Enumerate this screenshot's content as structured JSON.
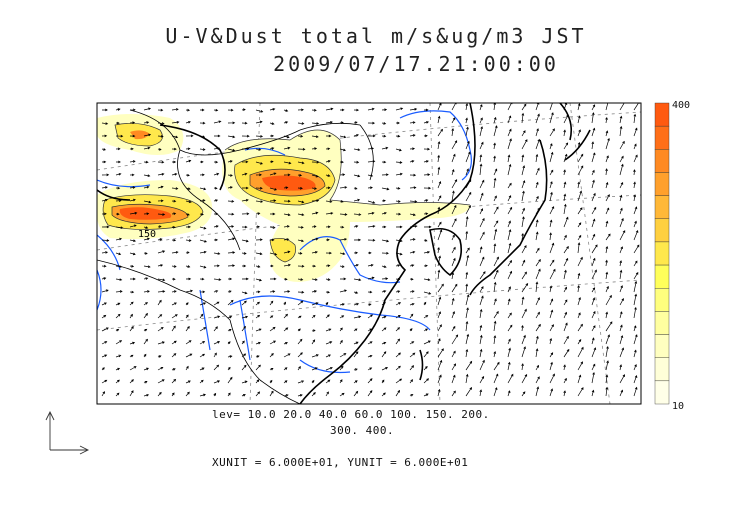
{
  "title_line1": "U-V&Dust total m/s&ug/m3 JST",
  "title_line2": "2009/07/17.21:00:00",
  "levels_line1": "lev= 10.0 20.0 40.0 60.0 100. 150. 200.",
  "levels_line2": "300. 400.",
  "units_text": "XUNIT = 6.000E+01, YUNIT = 6.000E+01",
  "colorbar": {
    "max_label": "400",
    "min_label": "10",
    "colors": [
      "#ff5a10",
      "#ff6f18",
      "#ff8a22",
      "#ffa02c",
      "#ffb838",
      "#ffd040",
      "#ffe84c",
      "#ffff5a",
      "#ffff7e",
      "#ffffa0",
      "#ffffc0",
      "#ffffd8",
      "#ffffe8"
    ]
  },
  "contour_labels": [
    "150"
  ],
  "colors": {
    "coast": "#000000",
    "river": "#1a5cff",
    "border": "#000000",
    "grid": "#7a7a7a"
  }
}
